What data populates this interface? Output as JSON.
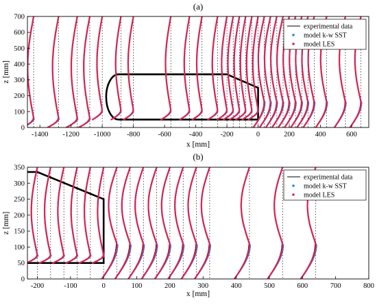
{
  "colors": {
    "experimental": "#000000",
    "sst": "#1f86ea",
    "les": "#e1204c",
    "body": "#000000"
  },
  "chart_data": [
    {
      "type": "line",
      "panel": "(a)",
      "xlabel": "x [mm]",
      "ylabel": "z [mm]",
      "xlim": [
        -1480,
        710
      ],
      "ylim": [
        0,
        700
      ],
      "xticks": [
        -1400,
        -1200,
        -1000,
        -800,
        -600,
        -400,
        -200,
        0,
        200,
        400,
        600
      ],
      "xtick_labels": [
        "-1400",
        "-1200",
        "-1000",
        "-800",
        "-600",
        "-400",
        "-200",
        "0",
        "200",
        "400",
        "600"
      ],
      "yticks": [
        0,
        100,
        200,
        300,
        400,
        500,
        600,
        700
      ],
      "ytick_labels": [
        "0",
        "100",
        "200",
        "300",
        "400",
        "500",
        "600",
        "700"
      ],
      "grid": false,
      "legend_position": "top-right",
      "legend": [
        "experimental data",
        "model k-w SST",
        "model LES"
      ],
      "body_outline": {
        "x": [
          -1040,
          -260,
          -200,
          -40,
          0,
          0,
          -1040
        ],
        "z": [
          50,
          50,
          50,
          50,
          50,
          250,
          335
        ]
      },
      "profile_stations_x": [
        -1440,
        -1280,
        -1160,
        -1080,
        -1000,
        -880,
        -800,
        -560,
        -440,
        -360,
        -260,
        -200,
        -160,
        -120,
        -80,
        -40,
        0,
        40,
        80,
        120,
        160,
        200,
        240,
        280,
        320,
        360,
        440,
        560,
        660
      ],
      "series": [
        {
          "name": "experimental data",
          "profile_shape": "boundary-layer velocity profile at each station"
        },
        {
          "name": "model k-w SST",
          "profile_shape": "boundary-layer velocity profile at each station"
        },
        {
          "name": "model LES",
          "profile_shape": "boundary-layer velocity profile at each station"
        }
      ]
    },
    {
      "type": "line",
      "panel": "(b)",
      "xlabel": "x [mm]",
      "ylabel": "z [mm]",
      "xlim": [
        -230,
        800
      ],
      "ylim": [
        0,
        350
      ],
      "xticks": [
        -200,
        -100,
        0,
        100,
        200,
        300,
        400,
        500,
        600,
        700,
        800
      ],
      "xtick_labels": [
        "-200",
        "-100",
        "0",
        "100",
        "200",
        "300",
        "400",
        "500",
        "600",
        "700",
        "800"
      ],
      "yticks": [
        0,
        50,
        100,
        150,
        200,
        250,
        300,
        350
      ],
      "ytick_labels": [
        "0",
        "50",
        "100",
        "150",
        "200",
        "250",
        "300",
        "350"
      ],
      "grid": false,
      "legend_position": "top-right",
      "legend": [
        "experimental data",
        "model k-w SST",
        "model LES"
      ],
      "body_outline": {
        "x": [
          -230,
          -200,
          -180,
          0,
          0,
          -230
        ],
        "z": [
          335,
          335,
          330,
          250,
          50,
          50
        ]
      },
      "profile_stations_x": [
        -200,
        -160,
        -120,
        -80,
        -40,
        0,
        40,
        80,
        120,
        160,
        200,
        240,
        280,
        320,
        440,
        540,
        640
      ],
      "series": [
        {
          "name": "experimental data",
          "profile_shape": "boundary-layer velocity profile at each station"
        },
        {
          "name": "model k-w SST",
          "profile_shape": "boundary-layer velocity profile at each station"
        },
        {
          "name": "model LES",
          "profile_shape": "boundary-layer velocity profile at each station"
        }
      ]
    }
  ]
}
